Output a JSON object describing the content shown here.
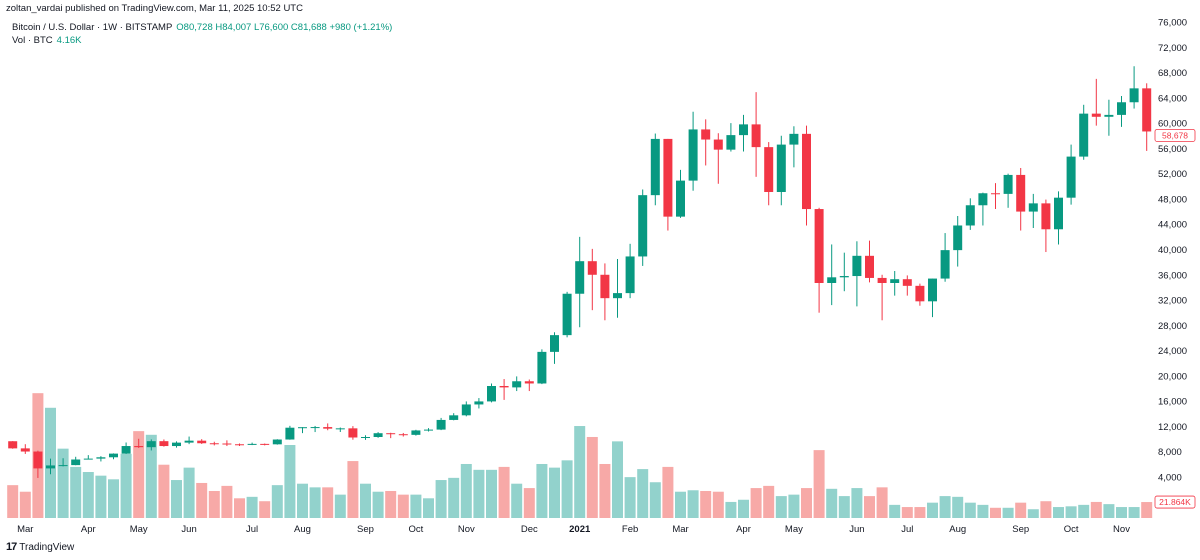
{
  "header": {
    "published": "zoltan_vardai published on TradingView.com, Mar 11, 2025 10:52 UTC",
    "symbol": "Bitcoin / U.S. Dollar · 1W · BITSTAMP",
    "ohlc": "O80,728 H84,007 L76,600 C81,688 +980 (+1.21%)",
    "vol_label": "Vol · BTC",
    "vol_value": "4.16K"
  },
  "footer": {
    "brand": "TradingView",
    "logo_icon": "tradingview-logo-icon"
  },
  "colors": {
    "up": "#089981",
    "down": "#f23645",
    "vol_up": "#92d2cc",
    "vol_down": "#f7a9a7",
    "grid": "#ffffff"
  },
  "chart_data": {
    "type": "candlestick",
    "interval": "1W",
    "y_scale": "linear",
    "ylim": [
      4000,
      76000
    ],
    "grid": false,
    "y_ticks": [
      "76,000",
      "72,000",
      "68,000",
      "64,000",
      "60,000",
      "56,000",
      "52,000",
      "48,000",
      "44,000",
      "40,000",
      "36,000",
      "32,000",
      "28,000",
      "24,000",
      "20,000",
      "16,000",
      "12,000",
      "8,000",
      "4,000"
    ],
    "x_ticks": [
      {
        "label": "Mar",
        "date": "2020-03-02"
      },
      {
        "label": "Apr",
        "date": "2020-04-06"
      },
      {
        "label": "May",
        "date": "2020-05-04"
      },
      {
        "label": "Jun",
        "date": "2020-06-01"
      },
      {
        "label": "Jul",
        "date": "2020-07-06"
      },
      {
        "label": "Aug",
        "date": "2020-08-03"
      },
      {
        "label": "Sep",
        "date": "2020-09-07"
      },
      {
        "label": "Oct",
        "date": "2020-10-05"
      },
      {
        "label": "Nov",
        "date": "2020-11-02"
      },
      {
        "label": "Dec",
        "date": "2020-12-07"
      },
      {
        "label": "2021",
        "date": "2021-01-04"
      },
      {
        "label": "Feb",
        "date": "2021-02-01"
      },
      {
        "label": "Mar",
        "date": "2021-03-01"
      },
      {
        "label": "Apr",
        "date": "2021-04-05"
      },
      {
        "label": "May",
        "date": "2021-05-03"
      },
      {
        "label": "Jun",
        "date": "2021-06-07"
      },
      {
        "label": "Jul",
        "date": "2021-07-05"
      },
      {
        "label": "Aug",
        "date": "2021-08-02"
      },
      {
        "label": "Sep",
        "date": "2021-09-06"
      },
      {
        "label": "Oct",
        "date": "2021-10-04"
      },
      {
        "label": "Nov",
        "date": "2021-11-01"
      }
    ],
    "last_price_label": "58,678",
    "last_price": 58678,
    "last_volume_label": "21.864K",
    "volume_unit": "K BTC",
    "columns": [
      "date",
      "open",
      "high",
      "low",
      "close",
      "volume"
    ],
    "candles": [
      [
        "2020-02-24",
        9660,
        9680,
        8470,
        8530,
        45
      ],
      [
        "2020-03-02",
        8530,
        9190,
        7650,
        8030,
        36
      ],
      [
        "2020-03-09",
        8030,
        8170,
        3850,
        5360,
        171
      ],
      [
        "2020-03-16",
        5360,
        6900,
        4440,
        5830,
        151
      ],
      [
        "2020-03-23",
        5830,
        6970,
        5680,
        5880,
        95
      ],
      [
        "2020-03-30",
        5880,
        7200,
        5860,
        6770,
        70
      ],
      [
        "2020-04-06",
        6770,
        7460,
        6770,
        6910,
        63
      ],
      [
        "2020-04-13",
        6910,
        7300,
        6460,
        7120,
        58
      ],
      [
        "2020-04-20",
        7120,
        7730,
        6800,
        7700,
        53
      ],
      [
        "2020-04-27",
        7700,
        9460,
        7650,
        8900,
        88
      ],
      [
        "2020-05-04",
        8900,
        10050,
        8600,
        8720,
        119
      ],
      [
        "2020-05-11",
        8720,
        9950,
        8200,
        9670,
        114
      ],
      [
        "2020-05-18",
        9670,
        9940,
        8800,
        8900,
        73
      ],
      [
        "2020-05-25",
        8900,
        9640,
        8640,
        9440,
        52
      ],
      [
        "2020-06-01",
        9440,
        10400,
        9200,
        9750,
        69
      ],
      [
        "2020-06-08",
        9750,
        9990,
        9230,
        9340,
        48
      ],
      [
        "2020-06-15",
        9340,
        9580,
        9000,
        9300,
        37
      ],
      [
        "2020-06-22",
        9300,
        9800,
        8900,
        9180,
        44
      ],
      [
        "2020-06-29",
        9180,
        9300,
        8900,
        9080,
        27
      ],
      [
        "2020-07-06",
        9080,
        9440,
        9050,
        9240,
        29
      ],
      [
        "2020-07-13",
        9240,
        9300,
        9000,
        9170,
        23
      ],
      [
        "2020-07-20",
        9170,
        9980,
        9120,
        9930,
        45
      ],
      [
        "2020-07-27",
        9930,
        12100,
        9900,
        11800,
        100
      ],
      [
        "2020-08-03",
        11800,
        11900,
        10950,
        11880,
        47
      ],
      [
        "2020-08-10",
        11880,
        12080,
        11110,
        11900,
        42
      ],
      [
        "2020-08-17",
        11900,
        12480,
        11400,
        11650,
        42
      ],
      [
        "2020-08-24",
        11650,
        11830,
        11120,
        11700,
        32
      ],
      [
        "2020-08-31",
        11700,
        12050,
        9900,
        10250,
        78
      ],
      [
        "2020-09-07",
        10250,
        10600,
        9880,
        10330,
        47
      ],
      [
        "2020-09-14",
        10330,
        11100,
        10200,
        10930,
        36
      ],
      [
        "2020-09-21",
        10930,
        11000,
        10150,
        10770,
        37
      ],
      [
        "2020-09-28",
        10770,
        10970,
        10400,
        10670,
        32
      ],
      [
        "2020-10-05",
        10670,
        11470,
        10550,
        11370,
        32
      ],
      [
        "2020-10-12",
        11370,
        11740,
        11200,
        11500,
        27
      ],
      [
        "2020-10-19",
        11500,
        13350,
        11420,
        13030,
        52
      ],
      [
        "2020-10-26",
        13030,
        14100,
        12970,
        13760,
        55
      ],
      [
        "2020-11-02",
        13760,
        15960,
        13600,
        15480,
        74
      ],
      [
        "2020-11-09",
        15480,
        16490,
        14850,
        15960,
        66
      ],
      [
        "2020-11-16",
        15960,
        18800,
        15800,
        18400,
        66
      ],
      [
        "2020-11-23",
        18400,
        19500,
        16200,
        18180,
        70
      ],
      [
        "2020-11-30",
        18180,
        19920,
        17600,
        19150,
        47
      ],
      [
        "2020-12-07",
        19150,
        19430,
        17600,
        18800,
        41
      ],
      [
        "2020-12-14",
        18800,
        24200,
        18700,
        23800,
        74
      ],
      [
        "2020-12-21",
        23800,
        26900,
        21900,
        26450,
        69
      ],
      [
        "2020-12-28",
        26450,
        33300,
        26100,
        33000,
        79
      ],
      [
        "2021-01-04",
        33000,
        42000,
        27700,
        38150,
        126
      ],
      [
        "2021-01-11",
        38150,
        40100,
        30400,
        36000,
        111
      ],
      [
        "2021-01-18",
        36000,
        37800,
        28800,
        32300,
        74
      ],
      [
        "2021-01-25",
        32300,
        38500,
        29200,
        33100,
        105
      ],
      [
        "2021-02-01",
        33100,
        40900,
        32300,
        38900,
        56
      ],
      [
        "2021-02-08",
        38900,
        49500,
        37400,
        48600,
        67
      ],
      [
        "2021-02-15",
        48600,
        58350,
        47000,
        57500,
        49
      ],
      [
        "2021-02-22",
        57500,
        57500,
        43000,
        45200,
        70
      ],
      [
        "2021-03-01",
        45200,
        52600,
        45000,
        50900,
        36
      ],
      [
        "2021-03-08",
        50900,
        61800,
        49300,
        59000,
        38
      ],
      [
        "2021-03-15",
        59000,
        60600,
        53300,
        57400,
        37
      ],
      [
        "2021-03-22",
        57400,
        58400,
        50400,
        55800,
        36
      ],
      [
        "2021-03-29",
        55800,
        60000,
        55500,
        58100,
        22
      ],
      [
        "2021-04-05",
        58100,
        61300,
        55500,
        59800,
        25
      ],
      [
        "2021-04-12",
        59800,
        64900,
        51500,
        56200,
        41
      ],
      [
        "2021-04-19",
        56200,
        57000,
        47000,
        49100,
        44
      ],
      [
        "2021-04-26",
        49100,
        58000,
        47000,
        56600,
        30
      ],
      [
        "2021-05-03",
        56600,
        59500,
        53000,
        58300,
        32
      ],
      [
        "2021-05-10",
        58300,
        59600,
        43800,
        46400,
        41
      ],
      [
        "2021-05-17",
        46400,
        46600,
        30000,
        34700,
        93
      ],
      [
        "2021-05-24",
        34700,
        40800,
        31200,
        35600,
        40
      ],
      [
        "2021-05-31",
        35600,
        39500,
        33400,
        35800,
        30
      ],
      [
        "2021-06-07",
        35800,
        41300,
        31000,
        39000,
        41
      ],
      [
        "2021-06-14",
        39000,
        41400,
        34800,
        35500,
        30
      ],
      [
        "2021-06-21",
        35500,
        36000,
        28800,
        34700,
        42
      ],
      [
        "2021-06-28",
        34700,
        36600,
        32700,
        35300,
        18
      ],
      [
        "2021-07-05",
        35300,
        35900,
        32700,
        34250,
        15
      ],
      [
        "2021-07-12",
        34250,
        34600,
        31100,
        31800,
        15
      ],
      [
        "2021-07-19",
        31800,
        35400,
        29300,
        35400,
        21
      ],
      [
        "2021-07-26",
        35400,
        42600,
        34900,
        39900,
        30
      ],
      [
        "2021-08-02",
        39900,
        45300,
        37300,
        43800,
        29
      ],
      [
        "2021-08-09",
        43800,
        48100,
        43100,
        47000,
        21
      ],
      [
        "2021-08-16",
        47000,
        49000,
        43800,
        48900,
        18
      ],
      [
        "2021-08-23",
        48900,
        50500,
        46400,
        48800,
        14
      ],
      [
        "2021-08-30",
        48800,
        52000,
        46600,
        51800,
        14
      ],
      [
        "2021-09-06",
        51800,
        52900,
        43000,
        46000,
        21
      ],
      [
        "2021-09-13",
        46000,
        48800,
        43400,
        47300,
        12
      ],
      [
        "2021-09-20",
        47300,
        47900,
        39600,
        43200,
        23
      ],
      [
        "2021-09-27",
        43200,
        49200,
        40800,
        48200,
        15
      ],
      [
        "2021-10-04",
        48200,
        56600,
        47100,
        54700,
        16
      ],
      [
        "2021-10-11",
        54700,
        62900,
        54200,
        61500,
        18
      ],
      [
        "2021-10-18",
        61500,
        67000,
        59600,
        61000,
        22
      ],
      [
        "2021-10-25",
        61000,
        63700,
        58000,
        61300,
        19
      ],
      [
        "2021-11-01",
        61300,
        64300,
        59400,
        63300,
        15
      ],
      [
        "2021-11-08",
        63300,
        69000,
        62300,
        65500,
        15
      ],
      [
        "2021-11-15",
        65500,
        66300,
        55600,
        58678,
        21.864
      ]
    ]
  }
}
